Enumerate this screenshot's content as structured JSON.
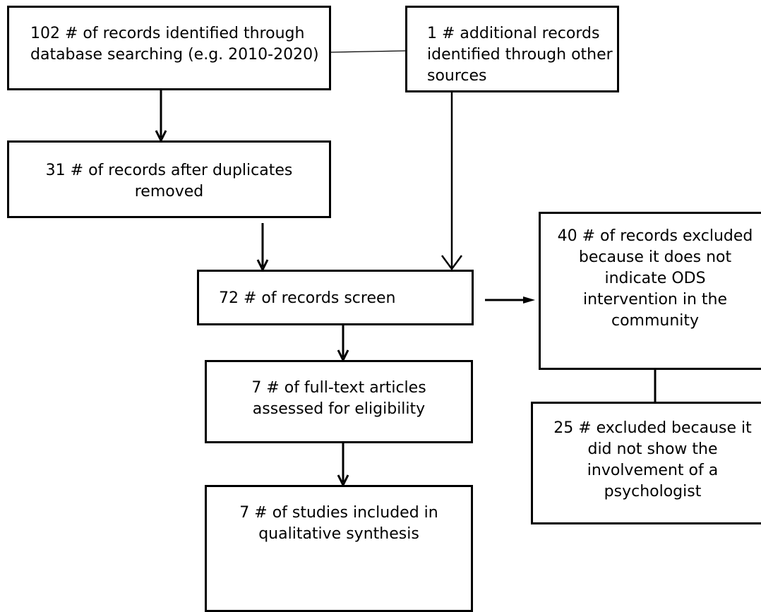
{
  "boxes": {
    "identified_db": "102 # of records identified through\ndatabase searching (e.g. 2010-2020)",
    "identified_other": "1 # additional records\nidentified through other\nsources",
    "after_duplicates": "31 # of records after duplicates\nremoved",
    "screened": "72 # of records screen",
    "excluded_screen": "40 # of records excluded\nbecause it does not\nindicate ODS\nintervention in the\ncommunity",
    "full_text": "7 # of full-text articles\nassessed for eligibility",
    "excluded_full_text": "25 # excluded because it\ndid not show the\ninvolvement of a\npsychologist",
    "included": "7 # of studies included in\nqualitative synthesis"
  }
}
